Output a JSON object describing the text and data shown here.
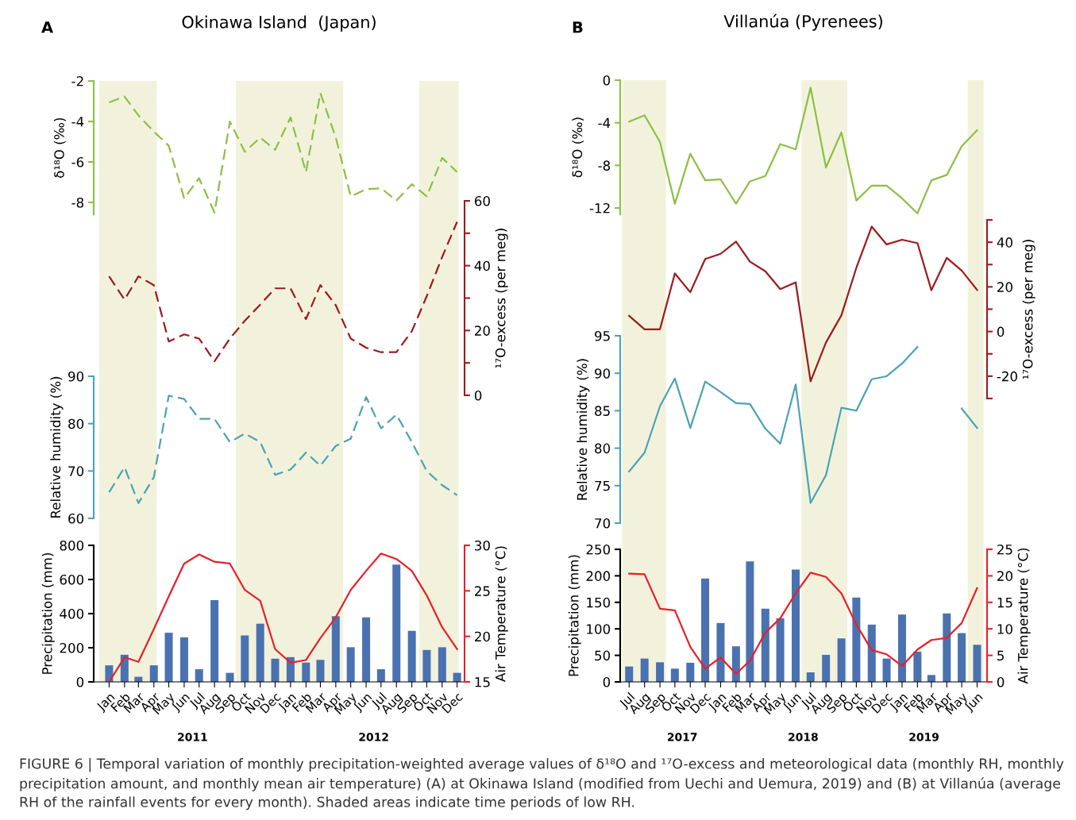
{
  "chart_data": [
    {
      "type": "line",
      "title": "Okinawa Island  (Japan)",
      "ylabel": "δ¹⁸O (‰)",
      "annotations": [
        "A",
        "FIGURE 6 | Temporal variation of monthly precipitation-weighted average values of δ¹⁸O and ¹⁷O-excess and meteorological data (monthly RH, monthly precipitation amount, and monthly mean air temperature) (A) at Okinawa Island (modified from Uechi and Uemura, 2019) and (B) at Villanúa (average RH of the rainfall events for every month). Shaded areas indicate time periods of low RH."
      ],
      "categories": [
        null,
        null,
        null,
        null,
        null,
        null,
        null,
        null,
        null,
        null,
        null,
        null,
        null,
        null,
        null,
        null,
        null,
        null,
        null,
        null,
        null,
        null,
        null,
        null
      ],
      "series": [
        {
          "color": "#8dbf45",
          "values": [
            -3.06,
            -2.77,
            -3.7,
            -4.5,
            -5.2,
            -7.8,
            -6.8,
            -8.5,
            -4.0,
            -5.5,
            -4.8,
            -5.4,
            -3.8,
            -6.5,
            -2.6,
            -4.8,
            -7.7,
            -7.35,
            -7.3,
            -7.9,
            -7.1,
            -7.7,
            -5.8,
            -6.5
          ]
        }
      ],
      "ylim": [
        -8.6,
        -2
      ],
      "yticks": [
        -8,
        -6,
        -4,
        -2
      ],
      "tick_labels": "y",
      "line_style": "dashed"
    },
    {
      "type": "line",
      "ylabel": "¹⁷O-excess (per meg)",
      "categories": [
        null,
        null,
        null,
        null,
        null,
        null,
        null,
        null,
        null,
        null,
        null,
        null,
        null,
        null,
        null,
        null,
        null,
        null,
        null,
        null,
        null,
        null,
        null,
        null
      ],
      "series": [
        {
          "color": "#9b1b1e",
          "values": [
            36.7,
            29.5,
            36.7,
            34,
            16.6,
            18.8,
            17.5,
            10.5,
            17.5,
            23,
            28,
            33,
            33,
            23.5,
            34,
            27.8,
            17.5,
            14.7,
            13.3,
            13.3,
            19.8,
            30.6,
            42.7,
            53.5
          ]
        }
      ],
      "ylim": [
        0,
        60
      ],
      "yticks": [
        0,
        {
          "value": 10,
          "label": null
        },
        20,
        {
          "value": 30,
          "label": null
        },
        40,
        {
          "value": 50,
          "label": null
        },
        60
      ],
      "tick_labels": "y",
      "line_style": "dashed"
    },
    {
      "type": "line",
      "ylabel": "Relative humidity (%)",
      "categories": [
        null,
        null,
        null,
        null,
        null,
        null,
        null,
        null,
        null,
        null,
        null,
        null,
        null,
        null,
        null,
        null,
        null,
        null,
        null,
        null,
        null,
        null,
        null,
        null
      ],
      "series": [
        {
          "color": "#4ba3b5",
          "values": [
            65.5,
            70.8,
            63.2,
            68.7,
            85.9,
            85.2,
            81,
            81,
            76.1,
            77.9,
            76.1,
            69.2,
            70.3,
            73.9,
            71.1,
            75.3,
            76.8,
            85.6,
            79,
            81.9,
            76.1,
            70,
            67,
            64.9
          ]
        }
      ],
      "ylim": [
        60,
        90
      ],
      "yticks": [
        60,
        70,
        80,
        90
      ],
      "tick_labels": "y",
      "line_style": "dashed"
    },
    {
      "type": "bar",
      "ylabel": "Precipitation (mm)",
      "y2label": "Air Temperature (°C)",
      "annotations": [
        "2011",
        "2012"
      ],
      "x": [
        "2011-01",
        "2011-02",
        "2011-03",
        "2011-04",
        "2011-05",
        "2011-06",
        "2011-07",
        "2011-08",
        "2011-09",
        "2011-10",
        "2011-11",
        "2011-12",
        "2012-01",
        "2012-02",
        "2012-03",
        "2012-04",
        "2012-05",
        "2012-06",
        "2012-07",
        "2012-08",
        "2012-09",
        "2012-10",
        "2012-11",
        "2012-12"
      ],
      "series": [
        {
          "type": "bar",
          "color": "#4a72b0",
          "values": [
            97,
            159,
            30,
            97,
            288,
            261,
            74,
            479,
            53,
            272,
            341,
            136,
            145,
            113,
            129,
            385,
            203,
            378,
            74,
            687,
            299,
            187,
            203,
            53
          ]
        },
        {
          "type": "line",
          "axis": "y2",
          "color": "#e8202a",
          "values": [
            15.0,
            17.7,
            17.2,
            20.8,
            24.4,
            28.0,
            29.0,
            28.2,
            28.0,
            25.1,
            23.9,
            18.6,
            17.1,
            17.4,
            19.8,
            22.1,
            25.1,
            27.2,
            29.1,
            28.5,
            27.2,
            24.5,
            21,
            18.6
          ]
        }
      ],
      "xlim": [
        "2010-12-01",
        "2012-12-16"
      ],
      "xticks": [
        {
          "value": "2011-01",
          "label": "Jan"
        },
        {
          "value": "2011-02",
          "label": "Feb"
        },
        {
          "value": "2011-03",
          "label": "Mar"
        },
        {
          "value": "2011-04",
          "label": "Apr"
        },
        {
          "value": "2011-05",
          "label": "May"
        },
        {
          "value": "2011-06",
          "label": "Jun"
        },
        {
          "value": "2011-07",
          "label": "Jul"
        },
        {
          "value": "2011-08",
          "label": "Aug"
        },
        {
          "value": "2011-09",
          "label": "Sep"
        },
        {
          "value": "2011-10",
          "label": "Oct"
        },
        {
          "value": "2011-11",
          "label": "Nov"
        },
        {
          "value": "2011-12",
          "label": "Dec"
        },
        {
          "value": "2012-01",
          "label": "Jan"
        },
        {
          "value": "2012-02",
          "label": "Feb"
        },
        {
          "value": "2012-03",
          "label": "Mar"
        },
        {
          "value": "2012-04",
          "label": "Apr"
        },
        {
          "value": "2012-05",
          "label": "May"
        },
        {
          "value": "2012-06",
          "label": "Jun"
        },
        {
          "value": "2012-07",
          "label": "Jul"
        },
        {
          "value": "2012-08",
          "label": "Aug"
        },
        {
          "value": "2012-09",
          "label": "Sep"
        },
        {
          "value": "2012-10",
          "label": "Oct"
        },
        {
          "value": "2012-11",
          "label": "Nov"
        },
        {
          "value": "2012-12",
          "label": "Dec"
        }
      ],
      "ylim": [
        0,
        800
      ],
      "yticks": [
        0,
        200,
        400,
        600,
        800
      ],
      "y2lim": [
        15,
        30
      ],
      "y2ticks": [
        15,
        20,
        25,
        30
      ],
      "line_style": "solid",
      "bands": [
        {
          "axis": "x",
          "from": "2010-12-12",
          "to": "2011-04-07",
          "color": "#f2f2dc"
        },
        {
          "axis": "x",
          "from": "2011-09-13",
          "to": "2012-04-16",
          "color": "#f2f2dc"
        },
        {
          "axis": "x",
          "from": "2012-09-16",
          "to": "2012-12-04",
          "color": "#f2f2dc"
        }
      ]
    },
    {
      "type": "line",
      "title": "Villanúa (Pyrenees)",
      "ylabel": "δ¹⁸O (‰)",
      "annotations": [
        "B"
      ],
      "categories": [
        null,
        null,
        null,
        null,
        null,
        null,
        null,
        null,
        null,
        null,
        null,
        null,
        null,
        null,
        null,
        null,
        null,
        null,
        null,
        null,
        null,
        null,
        null,
        null
      ],
      "series": [
        {
          "color": "#8dbf45",
          "values": [
            -3.9,
            -3.3,
            -5.8,
            -11.6,
            -6.9,
            -9.4,
            -9.3,
            -11.6,
            -9.5,
            -9.0,
            -6.0,
            -6.5,
            -0.7,
            -8.2,
            -4.9,
            -11.3,
            -9.9,
            -9.9,
            -11.1,
            -12.5,
            -9.4,
            -8.9,
            -6.2,
            -4.7
          ]
        }
      ],
      "ylim": [
        -12.6,
        0
      ],
      "yticks": [
        -12,
        -8,
        -4,
        0
      ],
      "tick_labels": "y",
      "line_style": "solid"
    },
    {
      "type": "line",
      "ylabel": "¹⁷O-excess (per meg)",
      "categories": [
        null,
        null,
        null,
        null,
        null,
        null,
        null,
        null,
        null,
        null,
        null,
        null,
        null,
        null,
        null,
        null,
        null,
        null,
        null,
        null,
        null,
        null,
        null,
        null
      ],
      "series": [
        {
          "color": "#9b1b1e",
          "values": [
            7,
            1,
            1,
            26,
            17.6,
            32.5,
            34.8,
            40.3,
            31.3,
            27,
            19,
            22,
            -22.3,
            -4.9,
            7.3,
            28.5,
            47,
            39,
            41.1,
            39.6,
            18.5,
            33,
            27.3,
            18.6
          ]
        }
      ],
      "ylim": [
        -30,
        50
      ],
      "yticks": [
        {
          "value": -30,
          "label": null
        },
        -20,
        {
          "value": -10,
          "label": null
        },
        0,
        {
          "value": 10,
          "label": null
        },
        20,
        {
          "value": 30,
          "label": null
        },
        40,
        {
          "value": 50,
          "label": null
        }
      ],
      "tick_labels": "y",
      "line_style": "solid"
    },
    {
      "type": "line",
      "ylabel": "Relative humidity (%)",
      "categories": [
        null,
        null,
        null,
        null,
        null,
        null,
        null,
        null,
        null,
        null,
        null,
        null,
        null,
        null,
        null,
        null,
        null,
        null,
        null,
        null,
        null,
        null,
        null,
        null
      ],
      "series": [
        {
          "color": "#4ba3b5",
          "values": [
            76.9,
            79.4,
            85.6,
            89.3,
            82.7,
            88.9,
            87.5,
            86.0,
            85.9,
            82.6,
            80.6,
            88.5,
            72.7,
            76.4,
            85.4,
            85.0,
            89.2,
            89.6,
            91.3,
            93.5,
            null,
            null,
            null,
            null
          ]
        },
        {
          "color": "#4ba3b5",
          "values": [
            null,
            null,
            null,
            null,
            null,
            null,
            null,
            null,
            null,
            null,
            null,
            null,
            null,
            null,
            null,
            null,
            null,
            null,
            null,
            null,
            null,
            null,
            85.3,
            82.7
          ]
        }
      ],
      "ylim": [
        70,
        95
      ],
      "yticks": [
        70,
        75,
        80,
        85,
        90,
        95
      ],
      "tick_labels": "y",
      "line_style": "solid"
    },
    {
      "type": "bar",
      "ylabel": "Precipitation (mm)",
      "y2label": "Air Temperature (°C)",
      "annotations": [
        "2017",
        "2018",
        "2019"
      ],
      "x": [
        "2017-07",
        "2017-08",
        "2017-09",
        "2017-10",
        "2017-11",
        "2017-12",
        "2018-01",
        "2018-02",
        "2018-03",
        "2018-04",
        "2018-05",
        "2018-06",
        "2018-07",
        "2018-08",
        "2018-09",
        "2018-10",
        "2018-11",
        "2018-12",
        "2019-01",
        "2019-02",
        "2019-03",
        "2019-04",
        "2019-05",
        "2019-06"
      ],
      "series": [
        {
          "type": "bar",
          "color": "#4a72b0",
          "values": [
            29,
            44,
            37,
            25,
            36,
            195,
            111,
            67,
            227,
            138,
            120,
            212,
            18,
            51,
            82,
            159,
            108,
            44,
            127,
            57,
            13,
            129,
            92,
            70
          ]
        },
        {
          "type": "line",
          "axis": "y2",
          "color": "#e8202a",
          "values": [
            20.4,
            20.3,
            13.8,
            13.5,
            6.6,
            2.5,
            4.6,
            1.5,
            4.0,
            9.3,
            12,
            16.7,
            20.6,
            19.8,
            16.7,
            10.8,
            6.0,
            5.2,
            3.0,
            6.1,
            7.9,
            8.3,
            11.1,
            17.7
          ]
        }
      ],
      "xlim": [
        "2017-06-13",
        "2019-06-21"
      ],
      "xticks": [
        {
          "value": "2017-07",
          "label": "Jul"
        },
        {
          "value": "2017-08",
          "label": "Aug"
        },
        {
          "value": "2017-09",
          "label": "Sep"
        },
        {
          "value": "2017-10",
          "label": "Oct"
        },
        {
          "value": "2017-11",
          "label": "Nov"
        },
        {
          "value": "2017-12",
          "label": "Dec"
        },
        {
          "value": "2018-01",
          "label": "Jan"
        },
        {
          "value": "2018-02",
          "label": "Feb"
        },
        {
          "value": "2018-03",
          "label": "Mar"
        },
        {
          "value": "2018-04",
          "label": "Apr"
        },
        {
          "value": "2018-05",
          "label": "May"
        },
        {
          "value": "2018-06",
          "label": "Jun"
        },
        {
          "value": "2018-07",
          "label": "Jul"
        },
        {
          "value": "2018-08",
          "label": "Aug"
        },
        {
          "value": "2018-09",
          "label": "Sep"
        },
        {
          "value": "2018-10",
          "label": "Oct"
        },
        {
          "value": "2018-11",
          "label": "Nov"
        },
        {
          "value": "2018-12",
          "label": "Dec"
        },
        {
          "value": "2019-01",
          "label": "Jan"
        },
        {
          "value": "2019-02",
          "label": "Feb"
        },
        {
          "value": "2019-03",
          "label": "Mar"
        },
        {
          "value": "2019-04",
          "label": "Apr"
        },
        {
          "value": "2019-05",
          "label": "May"
        },
        {
          "value": "2019-06",
          "label": "Jun"
        }
      ],
      "ylim": [
        0,
        250
      ],
      "yticks": [
        0,
        50,
        100,
        150,
        200,
        250
      ],
      "y2lim": [
        0,
        25
      ],
      "y2ticks": [
        0,
        5,
        10,
        15,
        20,
        25
      ],
      "line_style": "solid",
      "bands": [
        {
          "axis": "x",
          "from": "2017-06-17",
          "to": "2017-09-13",
          "color": "#f2f2dc"
        },
        {
          "axis": "x",
          "from": "2018-06-13",
          "to": "2018-09-13",
          "color": "#f2f2dc"
        },
        {
          "axis": "x",
          "from": "2019-05-13",
          "to": "2019-06-14",
          "color": "#f2f2dc"
        }
      ]
    }
  ]
}
